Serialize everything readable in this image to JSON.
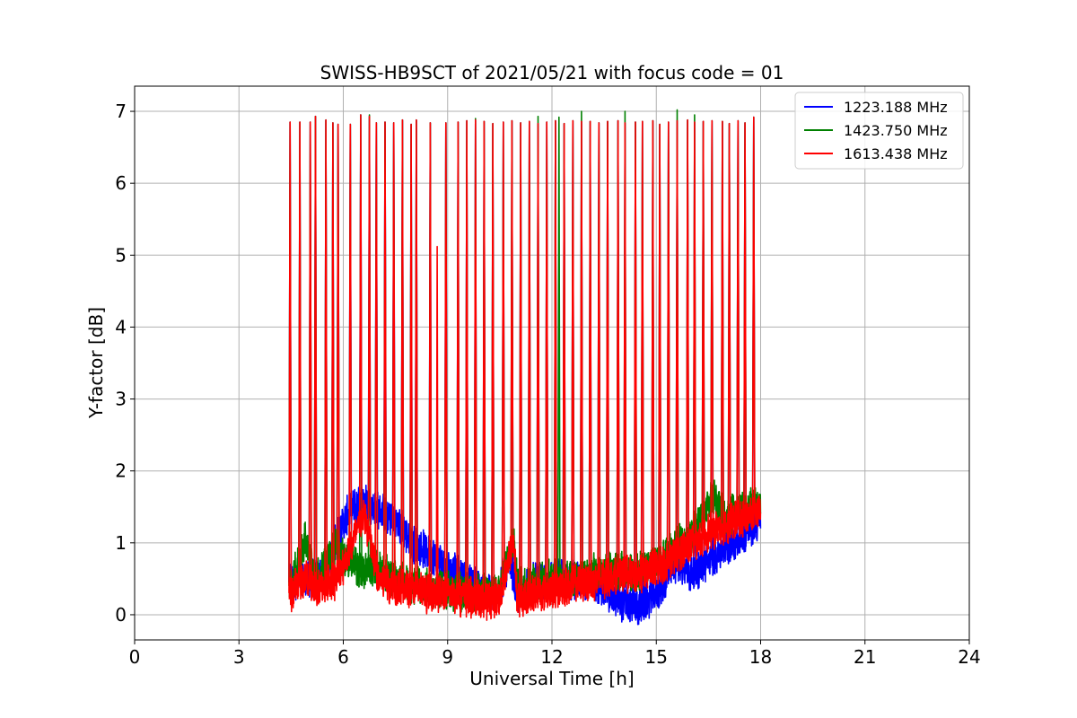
{
  "chart_data": {
    "type": "line",
    "title": "SWISS-HB9SCT of 2021/05/21 with focus code = 01",
    "xlabel": "Universal Time [h]",
    "ylabel": "Y-factor [dB]",
    "xlim": [
      0,
      24
    ],
    "ylim": [
      -0.35,
      7.35
    ],
    "xticks": [
      0,
      3,
      6,
      9,
      12,
      15,
      18,
      21,
      24
    ],
    "yticks": [
      0,
      1,
      2,
      3,
      4,
      5,
      6,
      7
    ],
    "grid": true,
    "legend_position": "top-right",
    "series": [
      {
        "name": "1223.188 MHz",
        "color": "#0000ff",
        "baseline": [
          [
            4.5,
            0.45
          ],
          [
            5.0,
            0.5
          ],
          [
            5.5,
            0.55
          ],
          [
            5.9,
            1.2
          ],
          [
            6.2,
            1.45
          ],
          [
            6.6,
            1.6
          ],
          [
            7.0,
            1.45
          ],
          [
            7.5,
            1.3
          ],
          [
            8.0,
            1.0
          ],
          [
            8.5,
            0.85
          ],
          [
            9.0,
            0.65
          ],
          [
            9.5,
            0.5
          ],
          [
            10.0,
            0.35
          ],
          [
            10.4,
            0.3
          ],
          [
            10.8,
            0.75
          ],
          [
            11.0,
            0.25
          ],
          [
            11.5,
            0.45
          ],
          [
            12.0,
            0.5
          ],
          [
            12.5,
            0.5
          ],
          [
            13.0,
            0.5
          ],
          [
            13.5,
            0.35
          ],
          [
            14.0,
            0.15
          ],
          [
            14.5,
            0.1
          ],
          [
            15.0,
            0.3
          ],
          [
            15.3,
            0.5
          ],
          [
            15.6,
            0.75
          ],
          [
            16.0,
            0.55
          ],
          [
            16.5,
            0.75
          ],
          [
            17.0,
            0.95
          ],
          [
            17.5,
            1.1
          ],
          [
            18.0,
            1.3
          ]
        ]
      },
      {
        "name": "1423.750 MHz",
        "color": "#008000",
        "baseline": [
          [
            4.5,
            0.4
          ],
          [
            4.9,
            1.05
          ],
          [
            5.2,
            0.45
          ],
          [
            5.8,
            1.0
          ],
          [
            6.0,
            0.8
          ],
          [
            6.6,
            0.6
          ],
          [
            7.0,
            0.65
          ],
          [
            7.5,
            0.5
          ],
          [
            8.0,
            0.4
          ],
          [
            8.5,
            0.35
          ],
          [
            9.0,
            0.35
          ],
          [
            9.5,
            0.3
          ],
          [
            10.0,
            0.3
          ],
          [
            10.5,
            0.35
          ],
          [
            10.9,
            1.1
          ],
          [
            11.0,
            0.4
          ],
          [
            11.5,
            0.45
          ],
          [
            12.0,
            0.5
          ],
          [
            12.5,
            0.5
          ],
          [
            13.0,
            0.55
          ],
          [
            13.5,
            0.6
          ],
          [
            14.0,
            0.6
          ],
          [
            14.5,
            0.6
          ],
          [
            15.0,
            0.7
          ],
          [
            15.5,
            0.9
          ],
          [
            16.0,
            1.1
          ],
          [
            16.6,
            1.65
          ],
          [
            17.0,
            1.35
          ],
          [
            17.5,
            1.45
          ],
          [
            18.0,
            1.55
          ]
        ]
      },
      {
        "name": "1613.438 MHz",
        "color": "#ff0000",
        "baseline": [
          [
            4.5,
            0.3
          ],
          [
            4.9,
            0.55
          ],
          [
            5.2,
            0.35
          ],
          [
            5.8,
            0.5
          ],
          [
            6.0,
            0.7
          ],
          [
            6.6,
            1.4
          ],
          [
            7.0,
            0.5
          ],
          [
            7.5,
            0.4
          ],
          [
            8.0,
            0.35
          ],
          [
            8.5,
            0.3
          ],
          [
            9.0,
            0.3
          ],
          [
            9.5,
            0.25
          ],
          [
            10.0,
            0.2
          ],
          [
            10.5,
            0.25
          ],
          [
            10.9,
            1.05
          ],
          [
            11.0,
            0.2
          ],
          [
            11.5,
            0.3
          ],
          [
            12.0,
            0.35
          ],
          [
            12.5,
            0.4
          ],
          [
            13.0,
            0.45
          ],
          [
            13.5,
            0.5
          ],
          [
            14.0,
            0.55
          ],
          [
            14.5,
            0.55
          ],
          [
            15.0,
            0.65
          ],
          [
            15.5,
            0.8
          ],
          [
            16.0,
            1.0
          ],
          [
            16.5,
            1.15
          ],
          [
            17.0,
            1.25
          ],
          [
            17.5,
            1.35
          ],
          [
            18.0,
            1.45
          ]
        ]
      }
    ],
    "calibration_peaks": [
      {
        "x": 4.47,
        "y": 6.85
      },
      {
        "x": 4.75,
        "y": 6.85
      },
      {
        "x": 5.05,
        "y": 6.85
      },
      {
        "x": 5.2,
        "y": 6.93
      },
      {
        "x": 5.5,
        "y": 6.88
      },
      {
        "x": 5.7,
        "y": 6.84
      },
      {
        "x": 5.85,
        "y": 6.82
      },
      {
        "x": 6.2,
        "y": 6.82
      },
      {
        "x": 6.5,
        "y": 6.95
      },
      {
        "x": 6.75,
        "y": 6.93
      },
      {
        "x": 6.95,
        "y": 6.84
      },
      {
        "x": 7.2,
        "y": 6.85
      },
      {
        "x": 7.45,
        "y": 6.84
      },
      {
        "x": 7.7,
        "y": 6.88
      },
      {
        "x": 7.95,
        "y": 6.82
      },
      {
        "x": 8.1,
        "y": 6.88
      },
      {
        "x": 8.5,
        "y": 6.84
      },
      {
        "x": 8.95,
        "y": 6.84
      },
      {
        "x": 9.3,
        "y": 6.85
      },
      {
        "x": 9.55,
        "y": 6.87
      },
      {
        "x": 9.8,
        "y": 6.88
      },
      {
        "x": 10.05,
        "y": 6.86
      },
      {
        "x": 10.3,
        "y": 6.83
      },
      {
        "x": 10.6,
        "y": 6.85
      },
      {
        "x": 10.85,
        "y": 6.87
      },
      {
        "x": 11.1,
        "y": 6.84
      },
      {
        "x": 11.35,
        "y": 6.86
      },
      {
        "x": 11.6,
        "y": 6.83
      },
      {
        "x": 11.85,
        "y": 6.85
      },
      {
        "x": 12.1,
        "y": 6.87
      },
      {
        "x": 12.35,
        "y": 6.83
      },
      {
        "x": 12.6,
        "y": 6.87
      },
      {
        "x": 12.85,
        "y": 6.86
      },
      {
        "x": 13.1,
        "y": 6.86
      },
      {
        "x": 13.35,
        "y": 6.84
      },
      {
        "x": 13.6,
        "y": 6.86
      },
      {
        "x": 13.9,
        "y": 6.87
      },
      {
        "x": 14.1,
        "y": 6.84
      },
      {
        "x": 14.4,
        "y": 6.85
      },
      {
        "x": 14.6,
        "y": 6.86
      },
      {
        "x": 14.9,
        "y": 6.87
      },
      {
        "x": 15.1,
        "y": 6.82
      },
      {
        "x": 15.35,
        "y": 6.85
      },
      {
        "x": 15.6,
        "y": 6.87
      },
      {
        "x": 15.9,
        "y": 6.88
      },
      {
        "x": 16.1,
        "y": 6.85
      },
      {
        "x": 16.35,
        "y": 6.86
      },
      {
        "x": 16.6,
        "y": 6.87
      },
      {
        "x": 16.9,
        "y": 6.86
      },
      {
        "x": 17.1,
        "y": 6.83
      },
      {
        "x": 17.35,
        "y": 6.87
      },
      {
        "x": 17.55,
        "y": 6.84
      },
      {
        "x": 17.8,
        "y": 6.92
      }
    ],
    "green_extra_peaks": [
      {
        "x": 6.75,
        "y": 6.95
      },
      {
        "x": 9.8,
        "y": 6.9
      },
      {
        "x": 11.6,
        "y": 6.93
      },
      {
        "x": 12.2,
        "y": 6.92
      },
      {
        "x": 12.85,
        "y": 7.0
      },
      {
        "x": 14.1,
        "y": 7.0
      },
      {
        "x": 15.6,
        "y": 7.02
      },
      {
        "x": 16.1,
        "y": 6.95
      }
    ],
    "outlier_spike": {
      "x": 8.7,
      "y": 5.12
    }
  }
}
